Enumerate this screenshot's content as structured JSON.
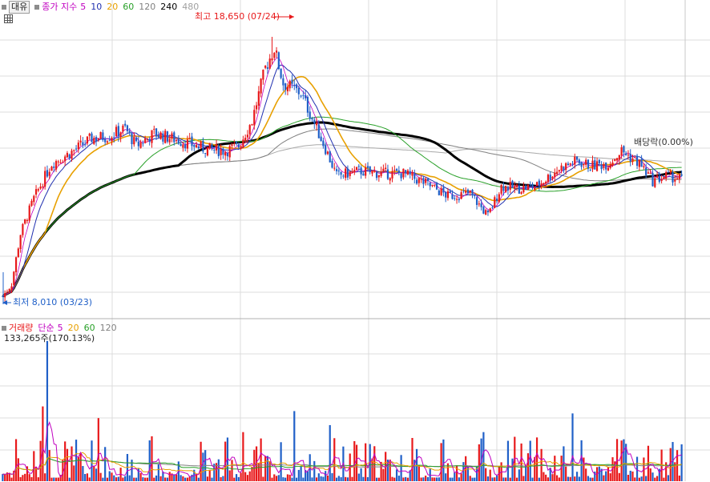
{
  "header": {
    "stock_button": "대유",
    "indicator_label": "종가 지수",
    "ma_periods": [
      "5",
      "10",
      "20",
      "60",
      "120",
      "240",
      "480"
    ]
  },
  "volume_header": {
    "label": "거래량",
    "ma_label": "단순",
    "ma_periods": [
      "5",
      "20",
      "60",
      "120"
    ],
    "last_volume": "133,265주(170.13%)"
  },
  "colors": {
    "up": "#e8191b",
    "down": "#2060c8",
    "ma5": "#c000c0",
    "ma10": "#2030b0",
    "ma20": "#e8a000",
    "ma60": "#28a028",
    "ma120": "#808080",
    "ma240": "#000000",
    "ma480": "#a0a0a0",
    "grid": "#dcdcdc"
  },
  "annotations": {
    "high": "최고 18,650 (07/24)",
    "low": "최저 8,010 (03/23)",
    "dividend": "배당락(0.00%)"
  },
  "chart_data": {
    "type": "candlestick",
    "price_range": [
      7600,
      19800
    ],
    "high": 18650,
    "low": 8010,
    "moving_averages": [
      "5",
      "10",
      "20",
      "60",
      "120",
      "240",
      "480"
    ],
    "volume_moving_averages": [
      "5",
      "20",
      "60",
      "120"
    ],
    "grid": true
  }
}
